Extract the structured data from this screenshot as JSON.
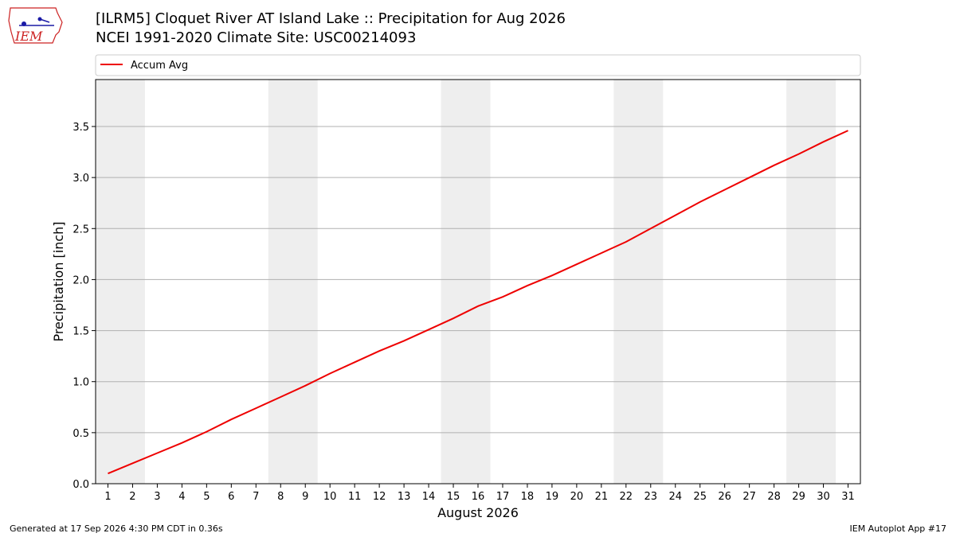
{
  "header": {
    "title_line1": "[ILRM5] Cloquet River  AT Island Lake :: Precipitation for Aug 2026",
    "title_line2": "NCEI 1991-2020 Climate Site: USC00214093"
  },
  "logo": {
    "text": "IEM",
    "icon": "iowa-state-outline-weather-icon"
  },
  "footer": {
    "left": "Generated at 17 Sep 2026 4:30 PM CDT in 0.36s",
    "right": "IEM Autoplot App #17"
  },
  "colors": {
    "line": "#ee0000",
    "weekend_shade": "#eeeeee",
    "grid": "#b0b0b0",
    "logo_red": "#cc2222",
    "logo_blue": "#1a1aa6"
  },
  "chart_data": {
    "type": "line",
    "title": "",
    "xlabel": "August 2026",
    "ylabel": "Precipitation [inch]",
    "xlim": [
      0.5,
      31.5
    ],
    "ylim": [
      0,
      3.96
    ],
    "yticks": [
      0.0,
      0.5,
      1.0,
      1.5,
      2.0,
      2.5,
      3.0,
      3.5
    ],
    "ytick_labels": [
      "0.0",
      "0.5",
      "1.0",
      "1.5",
      "2.0",
      "2.5",
      "3.0",
      "3.5"
    ],
    "xticks": [
      1,
      2,
      3,
      4,
      5,
      6,
      7,
      8,
      9,
      10,
      11,
      12,
      13,
      14,
      15,
      16,
      17,
      18,
      19,
      20,
      21,
      22,
      23,
      24,
      25,
      26,
      27,
      28,
      29,
      30,
      31
    ],
    "xtick_labels": [
      "1",
      "2",
      "3",
      "4",
      "5",
      "6",
      "7",
      "8",
      "9",
      "10",
      "11",
      "12",
      "13",
      "14",
      "15",
      "16",
      "17",
      "18",
      "19",
      "20",
      "21",
      "22",
      "23",
      "24",
      "25",
      "26",
      "27",
      "28",
      "29",
      "30",
      "31"
    ],
    "grid": "horizontal",
    "legend_position": "top-left, above plot",
    "shaded_weekends": [
      [
        1,
        2
      ],
      [
        8,
        9
      ],
      [
        15,
        16
      ],
      [
        22,
        23
      ],
      [
        29,
        30
      ]
    ],
    "series": [
      {
        "name": "Accum Avg",
        "x": [
          1,
          2,
          3,
          4,
          5,
          6,
          7,
          8,
          9,
          10,
          11,
          12,
          13,
          14,
          15,
          16,
          17,
          18,
          19,
          20,
          21,
          22,
          23,
          24,
          25,
          26,
          27,
          28,
          29,
          30,
          31
        ],
        "values": [
          0.1,
          0.2,
          0.3,
          0.4,
          0.51,
          0.63,
          0.74,
          0.85,
          0.96,
          1.08,
          1.19,
          1.3,
          1.4,
          1.51,
          1.62,
          1.74,
          1.83,
          1.94,
          2.04,
          2.15,
          2.26,
          2.37,
          2.5,
          2.63,
          2.76,
          2.88,
          3.0,
          3.12,
          3.23,
          3.35,
          3.46
        ]
      }
    ]
  }
}
